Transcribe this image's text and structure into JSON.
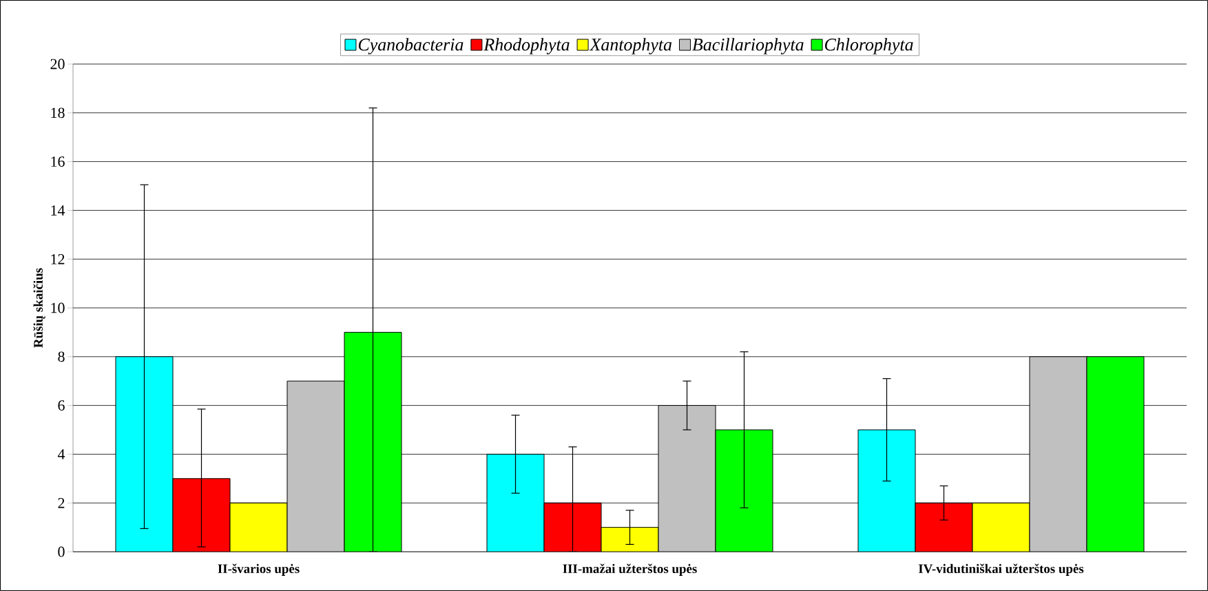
{
  "chart_data": {
    "type": "bar",
    "ylabel": "Rūšių skaičius",
    "categories": [
      "II-švarios upės",
      "III-mažai užterštos upės",
      "IV-vidutiniškai užterštos upės"
    ],
    "series": [
      {
        "name": "Cyanobacteria",
        "color": "#00ffff",
        "values": [
          8,
          4,
          5
        ],
        "errors": [
          [
            0.95,
            15.05
          ],
          [
            2.4,
            5.6
          ],
          [
            2.9,
            7.1
          ]
        ]
      },
      {
        "name": "Rhodophyta",
        "color": "#ff0000",
        "values": [
          3,
          2,
          2
        ],
        "errors": [
          [
            0.2,
            5.85
          ],
          [
            0,
            4.3
          ],
          [
            1.3,
            2.7
          ]
        ]
      },
      {
        "name": "Xantophyta",
        "color": "#ffff00",
        "values": [
          2,
          1,
          2
        ],
        "errors": [
          null,
          [
            0.3,
            1.7
          ],
          null
        ]
      },
      {
        "name": "Bacillariophyta",
        "color": "#c0c0c0",
        "values": [
          7,
          6,
          8
        ],
        "errors": [
          null,
          [
            5,
            7
          ],
          null
        ]
      },
      {
        "name": "Chlorophyta",
        "color": "#00ff00",
        "values": [
          9,
          5,
          8
        ],
        "errors": [
          [
            0,
            18.2
          ],
          [
            1.8,
            8.2
          ],
          null
        ]
      }
    ],
    "ylim": [
      0,
      20
    ],
    "yticks": [
      0,
      2,
      4,
      6,
      8,
      10,
      12,
      14,
      16,
      18,
      20
    ],
    "grid": "y",
    "legend": "top"
  }
}
